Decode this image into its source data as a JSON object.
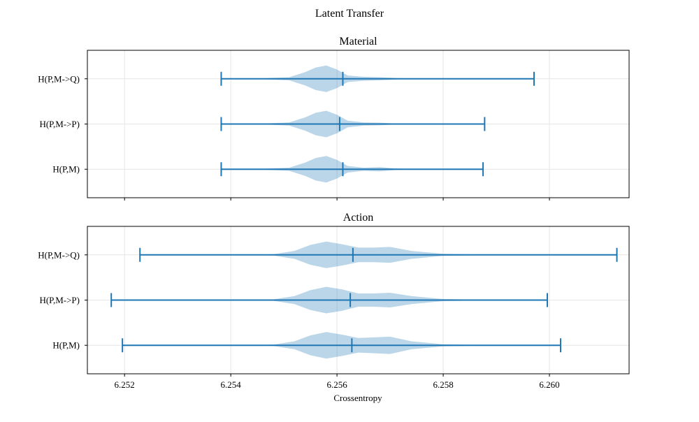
{
  "chart_data": {
    "type": "violin",
    "suptitle": "Latent Transfer",
    "xlabel": "Crossentropy",
    "xlim": [
      6.2513,
      6.2615
    ],
    "xticks": [
      "6.252",
      "6.254",
      "6.256",
      "6.258",
      "6.260"
    ],
    "grid": true,
    "orientation": "horizontal",
    "colors": {
      "line": "#1f77b4",
      "body": "#1f77b4",
      "grid": "#e6e6e6"
    },
    "panels": [
      {
        "title": "Material",
        "categories": [
          "H(P,M->Q)",
          "H(P,M->P)",
          "H(P,M)"
        ],
        "series": [
          {
            "category": "H(P,M->Q)",
            "min": 6.25382,
            "median": 6.25611,
            "max": 6.25971,
            "density": [
              [
                6.25382,
                0.0
              ],
              [
                6.2545,
                0.02
              ],
              [
                6.2551,
                0.12
              ],
              [
                6.2554,
                0.5
              ],
              [
                6.2556,
                0.85
              ],
              [
                6.2558,
                1.0
              ],
              [
                6.256,
                0.7
              ],
              [
                6.2562,
                0.25
              ],
              [
                6.2565,
                0.15
              ],
              [
                6.2568,
                0.12
              ],
              [
                6.2572,
                0.04
              ],
              [
                6.2578,
                0.01
              ],
              [
                6.25971,
                0.0
              ]
            ]
          },
          {
            "category": "H(P,M->P)",
            "min": 6.25382,
            "median": 6.25605,
            "max": 6.25878,
            "density": [
              [
                6.25382,
                0.0
              ],
              [
                6.2545,
                0.02
              ],
              [
                6.2551,
                0.12
              ],
              [
                6.2554,
                0.5
              ],
              [
                6.2556,
                0.85
              ],
              [
                6.2558,
                1.0
              ],
              [
                6.256,
                0.7
              ],
              [
                6.2562,
                0.25
              ],
              [
                6.2565,
                0.12
              ],
              [
                6.2568,
                0.1
              ],
              [
                6.2571,
                0.04
              ],
              [
                6.2576,
                0.01
              ],
              [
                6.25878,
                0.0
              ]
            ]
          },
          {
            "category": "H(P,M)",
            "min": 6.25382,
            "median": 6.25611,
            "max": 6.25875,
            "density": [
              [
                6.25382,
                0.0
              ],
              [
                6.2545,
                0.02
              ],
              [
                6.2551,
                0.12
              ],
              [
                6.2554,
                0.5
              ],
              [
                6.2556,
                0.85
              ],
              [
                6.2558,
                1.0
              ],
              [
                6.256,
                0.7
              ],
              [
                6.2562,
                0.25
              ],
              [
                6.2565,
                0.12
              ],
              [
                6.2568,
                0.16
              ],
              [
                6.2571,
                0.06
              ],
              [
                6.2576,
                0.01
              ],
              [
                6.25875,
                0.0
              ]
            ]
          }
        ]
      },
      {
        "title": "Action",
        "categories": [
          "H(P,M->Q)",
          "H(P,M->P)",
          "H(P,M)"
        ],
        "series": [
          {
            "category": "H(P,M->Q)",
            "min": 6.25229,
            "median": 6.2563,
            "max": 6.26127,
            "density": [
              [
                6.25229,
                0.0
              ],
              [
                6.254,
                0.005
              ],
              [
                6.2548,
                0.05
              ],
              [
                6.2552,
                0.3
              ],
              [
                6.2555,
                0.75
              ],
              [
                6.2558,
                1.0
              ],
              [
                6.2561,
                0.8
              ],
              [
                6.2564,
                0.55
              ],
              [
                6.2567,
                0.55
              ],
              [
                6.257,
                0.6
              ],
              [
                6.2574,
                0.3
              ],
              [
                6.258,
                0.08
              ],
              [
                6.259,
                0.01
              ],
              [
                6.26127,
                0.0
              ]
            ]
          },
          {
            "category": "H(P,M->P)",
            "min": 6.25175,
            "median": 6.25625,
            "max": 6.25996,
            "density": [
              [
                6.25175,
                0.0
              ],
              [
                6.254,
                0.005
              ],
              [
                6.2548,
                0.05
              ],
              [
                6.2552,
                0.3
              ],
              [
                6.2555,
                0.75
              ],
              [
                6.2558,
                1.0
              ],
              [
                6.2561,
                0.8
              ],
              [
                6.2564,
                0.5
              ],
              [
                6.2567,
                0.5
              ],
              [
                6.257,
                0.55
              ],
              [
                6.2574,
                0.3
              ],
              [
                6.258,
                0.08
              ],
              [
                6.259,
                0.01
              ],
              [
                6.25996,
                0.0
              ]
            ]
          },
          {
            "category": "H(P,M)",
            "min": 6.25196,
            "median": 6.25628,
            "max": 6.26021,
            "density": [
              [
                6.25196,
                0.0
              ],
              [
                6.254,
                0.005
              ],
              [
                6.2548,
                0.05
              ],
              [
                6.2552,
                0.3
              ],
              [
                6.2555,
                0.75
              ],
              [
                6.2558,
                1.0
              ],
              [
                6.2561,
                0.8
              ],
              [
                6.2564,
                0.55
              ],
              [
                6.2567,
                0.6
              ],
              [
                6.257,
                0.65
              ],
              [
                6.2574,
                0.3
              ],
              [
                6.258,
                0.08
              ],
              [
                6.259,
                0.01
              ],
              [
                6.26021,
                0.0
              ]
            ]
          }
        ]
      }
    ]
  }
}
